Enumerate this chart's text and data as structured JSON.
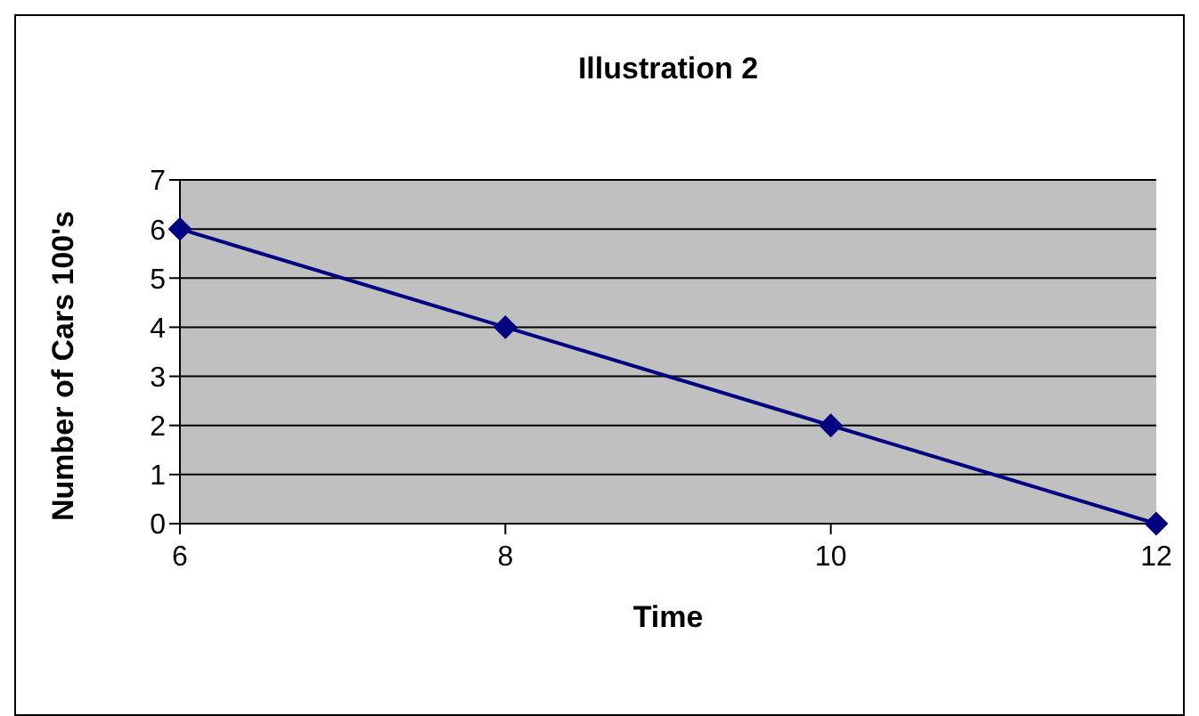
{
  "chart_data": {
    "type": "line",
    "title": "Illustration 2",
    "xlabel": "Time",
    "ylabel": "Number of Cars 100's",
    "x": [
      6,
      8,
      10,
      12
    ],
    "series": [
      {
        "color": "#000080",
        "values": [
          6,
          4,
          2,
          0
        ]
      }
    ],
    "xlim": [
      6,
      12
    ],
    "xticks": [
      6,
      8,
      10,
      12
    ],
    "ylim": [
      0,
      7
    ],
    "yticks": [
      0,
      1,
      2,
      3,
      4,
      5,
      6,
      7
    ],
    "grid": "y",
    "marker": "diamond",
    "line_style": "solid",
    "legend": false
  }
}
